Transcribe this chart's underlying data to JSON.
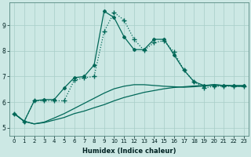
{
  "xlabel": "Humidex (Indice chaleur)",
  "ylabel": "",
  "background_color": "#cce8e4",
  "grid_color": "#a8cec8",
  "line_color": "#006858",
  "xlim": [
    -0.5,
    23.5
  ],
  "ylim": [
    4.7,
    9.9
  ],
  "xticks": [
    0,
    1,
    2,
    3,
    4,
    5,
    6,
    7,
    8,
    9,
    10,
    11,
    12,
    13,
    14,
    15,
    16,
    17,
    18,
    19,
    20,
    21,
    22,
    23
  ],
  "yticks": [
    5,
    6,
    7,
    8,
    9
  ],
  "line1_x": [
    0,
    1,
    2,
    3,
    4,
    5,
    6,
    7,
    8,
    9,
    10,
    11,
    12,
    13,
    14,
    15,
    16,
    17,
    18,
    19,
    20,
    21,
    22,
    23
  ],
  "line1_y": [
    5.55,
    5.25,
    5.15,
    5.2,
    5.3,
    5.4,
    5.55,
    5.65,
    5.78,
    5.9,
    6.05,
    6.18,
    6.28,
    6.38,
    6.45,
    6.52,
    6.57,
    6.6,
    6.63,
    6.65,
    6.68,
    6.65,
    6.62,
    6.62
  ],
  "line2_x": [
    0,
    1,
    2,
    3,
    4,
    5,
    6,
    7,
    8,
    9,
    10,
    11,
    12,
    13,
    14,
    15,
    16,
    17,
    18,
    19,
    20,
    21,
    22,
    23
  ],
  "line2_y": [
    5.55,
    5.25,
    5.15,
    5.22,
    5.38,
    5.55,
    5.75,
    5.95,
    6.15,
    6.35,
    6.52,
    6.62,
    6.68,
    6.68,
    6.65,
    6.62,
    6.6,
    6.58,
    6.6,
    6.63,
    6.68,
    6.65,
    6.62,
    6.62
  ],
  "line3_x": [
    0,
    1,
    2,
    3,
    4,
    5,
    6,
    7,
    8,
    9,
    10,
    11,
    12,
    13,
    14,
    15,
    16,
    17,
    18,
    19,
    20,
    21,
    22,
    23
  ],
  "line3_y": [
    5.55,
    5.25,
    6.05,
    6.05,
    6.05,
    6.05,
    6.85,
    6.95,
    7.0,
    8.75,
    9.5,
    9.2,
    8.45,
    8.02,
    8.32,
    8.4,
    7.95,
    7.25,
    6.8,
    6.55,
    6.62,
    6.62,
    6.62,
    6.62
  ],
  "line4_x": [
    0,
    1,
    2,
    3,
    4,
    5,
    6,
    7,
    8,
    9,
    10,
    11,
    12,
    13,
    14,
    15,
    16,
    17,
    18,
    19,
    20,
    21,
    22,
    23
  ],
  "line4_y": [
    5.55,
    5.25,
    6.05,
    6.1,
    6.1,
    6.55,
    6.95,
    7.0,
    7.45,
    9.55,
    9.3,
    8.55,
    8.05,
    8.05,
    8.45,
    8.45,
    7.85,
    7.25,
    6.8,
    6.65,
    6.65,
    6.65,
    6.65,
    6.65
  ]
}
